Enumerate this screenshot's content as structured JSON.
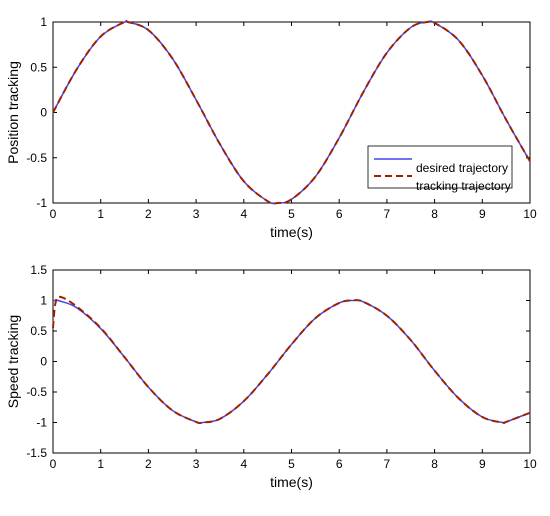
{
  "colors": {
    "desired": "#4444ee",
    "tracking": "#a02000",
    "axes": "#000000"
  },
  "legend": {
    "entries": [
      "desired trajectory",
      "tracking trajectory"
    ]
  },
  "chart_data": [
    {
      "type": "line",
      "title": "",
      "xlabel": "time(s)",
      "ylabel": "Position tracking",
      "xlim": [
        0,
        10
      ],
      "ylim": [
        -1,
        1
      ],
      "x_ticks": [
        "0",
        "1",
        "2",
        "3",
        "4",
        "5",
        "6",
        "7",
        "8",
        "9",
        "10"
      ],
      "y_ticks": [
        "-1",
        "-0.5",
        "0",
        "0.5",
        "1"
      ],
      "grid": false,
      "legend_position": "bottom-right",
      "x": [
        0,
        0.5,
        1,
        1.5,
        1.57,
        2,
        2.5,
        3,
        3.5,
        4,
        4.5,
        4.71,
        5,
        5.5,
        6,
        6.5,
        7,
        7.5,
        7.85,
        8,
        8.5,
        9,
        9.5,
        10
      ],
      "series": [
        {
          "name": "desired trajectory",
          "style": "solid",
          "values": [
            0,
            0.48,
            0.84,
            1.0,
            1.0,
            0.91,
            0.6,
            0.14,
            -0.35,
            -0.76,
            -0.98,
            -1.0,
            -0.96,
            -0.71,
            -0.28,
            0.22,
            0.66,
            0.94,
            1.0,
            0.99,
            0.8,
            0.41,
            -0.08,
            -0.54
          ]
        },
        {
          "name": "tracking trajectory",
          "style": "dashed",
          "values": [
            0,
            0.48,
            0.84,
            1.0,
            1.0,
            0.91,
            0.6,
            0.14,
            -0.35,
            -0.76,
            -0.98,
            -1.0,
            -0.96,
            -0.71,
            -0.28,
            0.22,
            0.66,
            0.94,
            1.0,
            0.99,
            0.8,
            0.41,
            -0.08,
            -0.54
          ]
        }
      ]
    },
    {
      "type": "line",
      "title": "",
      "xlabel": "time(s)",
      "ylabel": "Speed tracking",
      "xlim": [
        0,
        10
      ],
      "ylim": [
        -1.5,
        1.5
      ],
      "x_ticks": [
        "0",
        "1",
        "2",
        "3",
        "4",
        "5",
        "6",
        "7",
        "8",
        "9",
        "10"
      ],
      "y_ticks": [
        "-1.5",
        "-1",
        "-0.5",
        "0",
        "0.5",
        "1",
        "1.5"
      ],
      "grid": false,
      "x": [
        0,
        0.05,
        0.15,
        0.5,
        1,
        1.5,
        2,
        2.5,
        3,
        3.14,
        3.5,
        4,
        4.5,
        5,
        5.5,
        6,
        6.28,
        6.5,
        7,
        7.5,
        8,
        8.5,
        9,
        9.42,
        9.5,
        10
      ],
      "series": [
        {
          "name": "desired trajectory",
          "style": "solid",
          "values": [
            1.0,
            1.0,
            0.99,
            0.88,
            0.54,
            0.07,
            -0.42,
            -0.8,
            -0.99,
            -1.0,
            -0.94,
            -0.65,
            -0.21,
            0.28,
            0.71,
            0.96,
            1.0,
            0.98,
            0.75,
            0.35,
            -0.15,
            -0.6,
            -0.91,
            -1.0,
            -0.99,
            -0.84
          ]
        },
        {
          "name": "tracking trajectory",
          "style": "dashed",
          "values": [
            0.55,
            0.95,
            1.06,
            0.9,
            0.55,
            0.07,
            -0.42,
            -0.8,
            -0.99,
            -1.0,
            -0.94,
            -0.65,
            -0.21,
            0.28,
            0.71,
            0.96,
            1.0,
            0.98,
            0.75,
            0.35,
            -0.15,
            -0.6,
            -0.91,
            -1.0,
            -0.99,
            -0.84
          ]
        }
      ]
    }
  ]
}
